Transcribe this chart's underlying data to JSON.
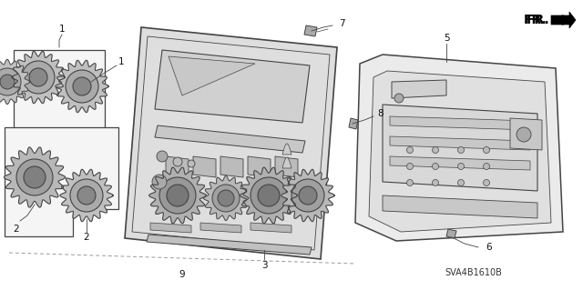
{
  "bg_color": "#ffffff",
  "line_color": "#444444",
  "label_color": "#111111",
  "part_number": "SVA4B1610B",
  "figsize": [
    6.4,
    3.19
  ],
  "dpi": 100,
  "knob_colors": {
    "outer": "#888888",
    "inner": "#aaaaaa",
    "teeth": "#555555"
  },
  "panel_fill": "#e8e8e8",
  "panel_edge": "#333333",
  "chassis_fill": "#eeeeee",
  "chassis_edge": "#444444"
}
